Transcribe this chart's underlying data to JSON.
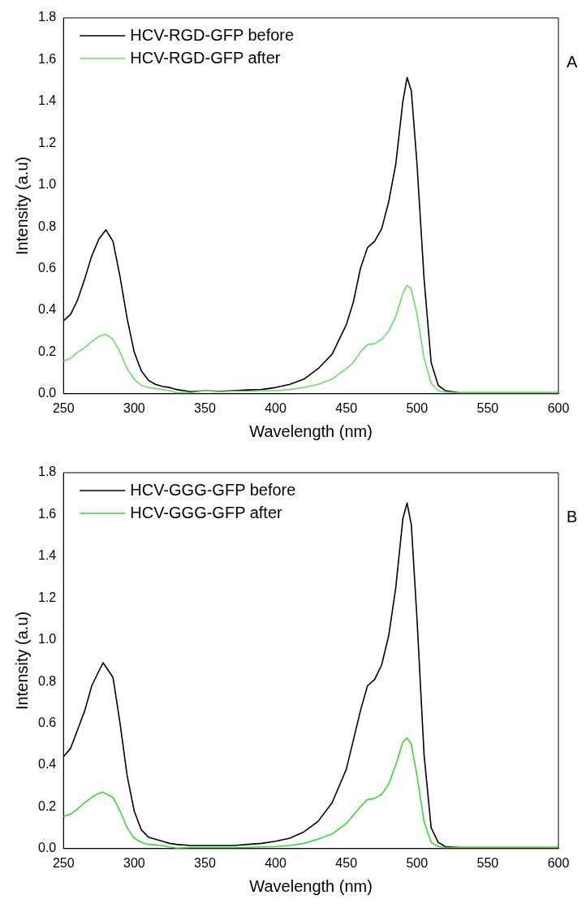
{
  "chart_data": [
    {
      "type": "line",
      "xlabel": "Wavelength (nm)",
      "ylabel": "Intensity (a.u)",
      "annotations": [
        "A"
      ],
      "legend": "top left",
      "grid": false,
      "marker": "none",
      "line_style": "solid",
      "x": [
        250,
        255,
        260,
        265,
        270,
        275,
        280,
        285,
        290,
        295,
        300,
        305,
        310,
        315,
        320,
        325,
        330,
        340,
        350,
        360,
        370,
        380,
        390,
        400,
        410,
        420,
        430,
        440,
        450,
        455,
        460,
        465,
        470,
        475,
        480,
        485,
        490,
        493,
        496,
        500,
        505,
        510,
        515,
        520,
        530,
        540,
        560,
        600
      ],
      "xlim": [
        250,
        600
      ],
      "xticks": [
        250,
        300,
        350,
        400,
        450,
        500,
        550,
        600
      ],
      "ylim": [
        0,
        1.8
      ],
      "yticks": [
        {
          "value": 0,
          "label": "0.0"
        },
        {
          "value": 0.2,
          "label": "0.2"
        },
        {
          "value": 0.4,
          "label": "0.4"
        },
        {
          "value": 0.6,
          "label": "0.6"
        },
        {
          "value": 0.8,
          "label": "0.8"
        },
        {
          "value": 1,
          "label": "1.0"
        },
        {
          "value": 1.2,
          "label": "1.2"
        },
        {
          "value": 1.4,
          "label": "1.4"
        },
        {
          "value": 1.6,
          "label": "1.6"
        },
        {
          "value": 1.8,
          "label": "1.8"
        }
      ],
      "series": [
        {
          "name": "HCV-RGD-GFP before",
          "color": "#000000",
          "values": [
            0.35,
            0.38,
            0.45,
            0.55,
            0.66,
            0.74,
            0.785,
            0.73,
            0.56,
            0.36,
            0.2,
            0.11,
            0.065,
            0.045,
            0.035,
            0.03,
            0.02,
            0.01,
            0.015,
            0.012,
            0.015,
            0.018,
            0.02,
            0.03,
            0.045,
            0.07,
            0.12,
            0.19,
            0.33,
            0.44,
            0.6,
            0.7,
            0.73,
            0.79,
            0.92,
            1.1,
            1.4,
            1.515,
            1.45,
            1.1,
            0.55,
            0.15,
            0.04,
            0.015,
            0.005,
            0.005,
            0.005,
            0.005
          ]
        },
        {
          "name": "HCV-RGD-GFP after",
          "color": "#66e066",
          "values": [
            0.155,
            0.17,
            0.2,
            0.22,
            0.25,
            0.275,
            0.285,
            0.26,
            0.2,
            0.12,
            0.07,
            0.04,
            0.03,
            0.025,
            0.02,
            0.015,
            0.005,
            0.005,
            0.015,
            0.01,
            0.012,
            0.012,
            0.015,
            0.015,
            0.02,
            0.03,
            0.045,
            0.07,
            0.12,
            0.15,
            0.2,
            0.235,
            0.24,
            0.26,
            0.3,
            0.37,
            0.48,
            0.52,
            0.5,
            0.38,
            0.17,
            0.05,
            0.015,
            0.008,
            0.005,
            0.005,
            0.005,
            0.005
          ]
        }
      ]
    },
    {
      "type": "line",
      "xlabel": "Wavelength (nm)",
      "ylabel": "Intensity (a.u)",
      "annotations": [
        "B"
      ],
      "legend": "top left",
      "grid": false,
      "marker": "none",
      "line_style": "solid",
      "x": [
        250,
        255,
        260,
        265,
        270,
        275,
        278,
        285,
        290,
        295,
        300,
        305,
        310,
        315,
        320,
        325,
        330,
        340,
        350,
        360,
        370,
        380,
        390,
        400,
        410,
        420,
        430,
        440,
        450,
        455,
        460,
        465,
        470,
        475,
        480,
        485,
        490,
        493,
        496,
        500,
        505,
        510,
        515,
        520,
        530,
        540,
        560,
        600
      ],
      "xlim": [
        250,
        600
      ],
      "xticks": [
        250,
        300,
        350,
        400,
        450,
        500,
        550,
        600
      ],
      "ylim": [
        0,
        1.8
      ],
      "yticks": [
        {
          "value": 0,
          "label": "0.0"
        },
        {
          "value": 0.2,
          "label": "0.2"
        },
        {
          "value": 0.4,
          "label": "0.4"
        },
        {
          "value": 0.6,
          "label": "0.6"
        },
        {
          "value": 0.8,
          "label": "0.8"
        },
        {
          "value": 1,
          "label": "1.0"
        },
        {
          "value": 1.2,
          "label": "1.2"
        },
        {
          "value": 1.4,
          "label": "1.4"
        },
        {
          "value": 1.6,
          "label": "1.6"
        },
        {
          "value": 1.8,
          "label": "1.8"
        }
      ],
      "series": [
        {
          "name": "HCV-GGG-GFP before",
          "color": "#000000",
          "values": [
            0.44,
            0.48,
            0.57,
            0.66,
            0.78,
            0.85,
            0.89,
            0.82,
            0.6,
            0.35,
            0.18,
            0.09,
            0.055,
            0.045,
            0.035,
            0.025,
            0.02,
            0.015,
            0.015,
            0.015,
            0.015,
            0.02,
            0.025,
            0.035,
            0.05,
            0.08,
            0.13,
            0.22,
            0.38,
            0.52,
            0.66,
            0.78,
            0.81,
            0.88,
            1.02,
            1.25,
            1.58,
            1.655,
            1.55,
            1.1,
            0.45,
            0.1,
            0.03,
            0.01,
            0.005,
            0.005,
            0.005,
            0.005
          ]
        },
        {
          "name": "HCV-GGG-GFP after",
          "color": "#33dd33",
          "values": [
            0.155,
            0.165,
            0.19,
            0.22,
            0.245,
            0.265,
            0.27,
            0.245,
            0.18,
            0.1,
            0.05,
            0.03,
            0.02,
            0.018,
            0.015,
            0.008,
            0.002,
            0.005,
            0.005,
            0.005,
            0.005,
            0.006,
            0.008,
            0.01,
            0.015,
            0.025,
            0.045,
            0.07,
            0.12,
            0.16,
            0.2,
            0.235,
            0.24,
            0.26,
            0.31,
            0.4,
            0.51,
            0.53,
            0.5,
            0.35,
            0.13,
            0.03,
            0.01,
            0.005,
            0.005,
            0.005,
            0.005,
            0.005
          ]
        }
      ]
    }
  ]
}
